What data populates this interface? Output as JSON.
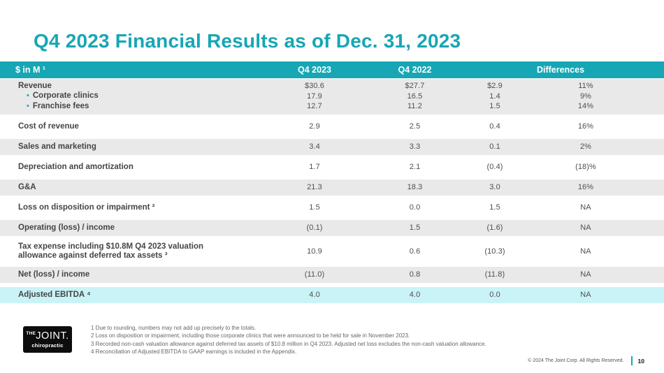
{
  "slide": {
    "title": "Q4 2023 Financial Results as of Dec. 31, 2023",
    "page_number": "10",
    "copyright": "© 2024 The Joint Corp. All Rights Reserved."
  },
  "logo": {
    "the": "THE",
    "joint": "JOINT.",
    "tagline": "chiropractic"
  },
  "icons": {
    "bullet": "•"
  },
  "colors": {
    "teal": "#17a6b4",
    "row_gray": "#e9e9e9",
    "highlight_cyan": "#c9f3f7"
  },
  "table": {
    "columns": {
      "label": "$ in M ¹",
      "q4_2023": "Q4 2023",
      "q4_2022": "Q4 2022",
      "differences": "Differences"
    },
    "revenue_group": {
      "lines": [
        {
          "label": "Revenue",
          "q4_2023": "$30.6",
          "q4_2022": "$27.7",
          "diff": "$2.9",
          "diff_pct": "11%"
        },
        {
          "label": "Corporate clinics",
          "q4_2023": "17.9",
          "q4_2022": "16.5",
          "diff": "1.4",
          "diff_pct": "9%"
        },
        {
          "label": "Franchise fees",
          "q4_2023": "12.7",
          "q4_2022": "11.2",
          "diff": "1.5",
          "diff_pct": "14%"
        }
      ]
    },
    "rows": [
      {
        "label": "Cost of revenue",
        "q4_2023": "2.9",
        "q4_2022": "2.5",
        "diff": "0.4",
        "diff_pct": "16%"
      },
      {
        "label": "Sales and marketing",
        "q4_2023": "3.4",
        "q4_2022": "3.3",
        "diff": "0.1",
        "diff_pct": "2%"
      },
      {
        "label": "Depreciation and amortization",
        "q4_2023": "1.7",
        "q4_2022": "2.1",
        "diff": "(0.4)",
        "diff_pct": "(18)%"
      },
      {
        "label": "G&A",
        "q4_2023": "21.3",
        "q4_2022": "18.3",
        "diff": "3.0",
        "diff_pct": "16%"
      },
      {
        "label": "Loss on disposition or impairment ²",
        "q4_2023": "1.5",
        "q4_2022": "0.0",
        "diff": "1.5",
        "diff_pct": "NA"
      },
      {
        "label": "Operating (loss) / income",
        "q4_2023": "(0.1)",
        "q4_2022": "1.5",
        "diff": "(1.6)",
        "diff_pct": "NA"
      },
      {
        "label": "Tax expense including $10.8M Q4 2023 valuation allowance against deferred tax assets ³",
        "q4_2023": "10.9",
        "q4_2022": "0.6",
        "diff": "(10.3)",
        "diff_pct": "NA"
      },
      {
        "label": "Net (loss) / income",
        "q4_2023": "(11.0)",
        "q4_2022": "0.8",
        "diff": "(11.8)",
        "diff_pct": "NA"
      },
      {
        "label": "Adjusted EBITDA ⁴",
        "q4_2023": "4.0",
        "q4_2022": "4.0",
        "diff": "0.0",
        "diff_pct": "NA"
      }
    ]
  },
  "footnotes": [
    "1 Due to rounding, numbers may not add up precisely to the totals.",
    "2 Loss on disposition or impairment, including those corporate clinics that were announced to be held for sale in November 2023.",
    "3 Recorded non-cash valuation allowance against deferred tax assets of $10.8 million in Q4 2023. Adjusted net loss excludes the non-cash valuation allowance.",
    "4 Reconciliation of Adjusted EBITDA to GAAP earnings is included in the Appendix."
  ]
}
